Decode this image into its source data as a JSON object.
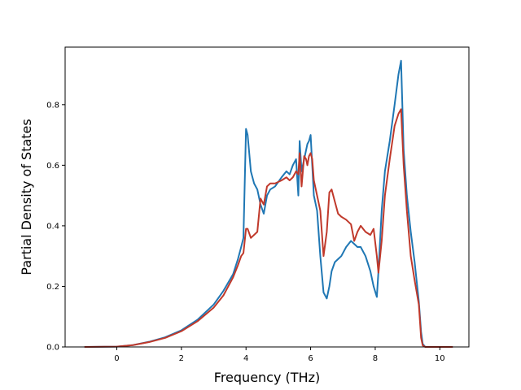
{
  "chart_data": {
    "type": "line",
    "title": "",
    "xlabel": "Frequency (THz)",
    "ylabel": "Partial Density of States",
    "xlim": [
      -1.6,
      10.9
    ],
    "ylim": [
      0.0,
      0.99
    ],
    "xticks": [
      0,
      2,
      4,
      6,
      8,
      10
    ],
    "xtick_labels": [
      "0",
      "2",
      "4",
      "6",
      "8",
      "10"
    ],
    "yticks": [
      0.0,
      0.2,
      0.4,
      0.6,
      0.8
    ],
    "ytick_labels": [
      "0.0",
      "0.2",
      "0.4",
      "0.6",
      "0.8"
    ],
    "grid": false,
    "legend": "none",
    "series": [
      {
        "color": "#1f77b4",
        "x": [
          -1.0,
          0.0,
          0.5,
          1.0,
          1.5,
          2.0,
          2.5,
          3.0,
          3.3,
          3.6,
          3.75,
          3.85,
          3.92,
          4.0,
          4.05,
          4.15,
          4.25,
          4.35,
          4.45,
          4.55,
          4.65,
          4.75,
          4.9,
          5.1,
          5.25,
          5.35,
          5.45,
          5.55,
          5.62,
          5.66,
          5.72,
          5.8,
          5.86,
          5.9,
          5.95,
          6.0,
          6.05,
          6.1,
          6.2,
          6.3,
          6.4,
          6.5,
          6.58,
          6.65,
          6.75,
          6.85,
          6.95,
          7.1,
          7.25,
          7.35,
          7.45,
          7.55,
          7.7,
          7.85,
          7.95,
          8.05,
          8.1,
          8.2,
          8.3,
          8.45,
          8.6,
          8.72,
          8.8,
          8.88,
          8.98,
          9.1,
          9.22,
          9.35,
          9.42,
          9.47,
          9.55,
          10.4
        ],
        "y": [
          0.0,
          0.001,
          0.006,
          0.017,
          0.032,
          0.055,
          0.09,
          0.14,
          0.185,
          0.24,
          0.29,
          0.33,
          0.36,
          0.72,
          0.7,
          0.58,
          0.54,
          0.52,
          0.47,
          0.44,
          0.5,
          0.52,
          0.53,
          0.56,
          0.58,
          0.57,
          0.6,
          0.62,
          0.5,
          0.68,
          0.58,
          0.62,
          0.65,
          0.67,
          0.68,
          0.7,
          0.6,
          0.5,
          0.45,
          0.3,
          0.18,
          0.16,
          0.2,
          0.25,
          0.28,
          0.29,
          0.3,
          0.33,
          0.35,
          0.34,
          0.33,
          0.33,
          0.3,
          0.25,
          0.2,
          0.165,
          0.25,
          0.45,
          0.58,
          0.68,
          0.8,
          0.9,
          0.945,
          0.65,
          0.5,
          0.38,
          0.28,
          0.15,
          0.05,
          0.01,
          0.0,
          0.0
        ]
      },
      {
        "color": "#c0392b",
        "x": [
          -1.0,
          0.0,
          0.5,
          1.0,
          1.5,
          2.0,
          2.5,
          3.0,
          3.3,
          3.6,
          3.75,
          3.85,
          3.92,
          4.0,
          4.05,
          4.15,
          4.25,
          4.35,
          4.45,
          4.55,
          4.65,
          4.75,
          4.9,
          5.1,
          5.25,
          5.35,
          5.45,
          5.55,
          5.62,
          5.66,
          5.72,
          5.8,
          5.86,
          5.9,
          5.95,
          6.0,
          6.05,
          6.1,
          6.2,
          6.3,
          6.4,
          6.5,
          6.58,
          6.65,
          6.75,
          6.85,
          6.95,
          7.1,
          7.25,
          7.35,
          7.45,
          7.55,
          7.7,
          7.85,
          7.95,
          8.05,
          8.1,
          8.2,
          8.3,
          8.45,
          8.6,
          8.72,
          8.8,
          8.88,
          8.98,
          9.1,
          9.22,
          9.35,
          9.42,
          9.47,
          9.55,
          10.4
        ],
        "y": [
          0.0,
          0.001,
          0.006,
          0.016,
          0.03,
          0.052,
          0.085,
          0.13,
          0.17,
          0.23,
          0.27,
          0.3,
          0.31,
          0.39,
          0.39,
          0.36,
          0.37,
          0.38,
          0.49,
          0.47,
          0.53,
          0.54,
          0.54,
          0.55,
          0.56,
          0.55,
          0.56,
          0.58,
          0.57,
          0.64,
          0.53,
          0.63,
          0.62,
          0.6,
          0.63,
          0.64,
          0.62,
          0.55,
          0.5,
          0.45,
          0.3,
          0.38,
          0.51,
          0.52,
          0.48,
          0.44,
          0.43,
          0.42,
          0.405,
          0.35,
          0.38,
          0.4,
          0.38,
          0.37,
          0.39,
          0.3,
          0.245,
          0.35,
          0.5,
          0.62,
          0.73,
          0.77,
          0.785,
          0.6,
          0.45,
          0.3,
          0.22,
          0.14,
          0.03,
          0.005,
          0.0,
          0.0
        ]
      }
    ]
  }
}
